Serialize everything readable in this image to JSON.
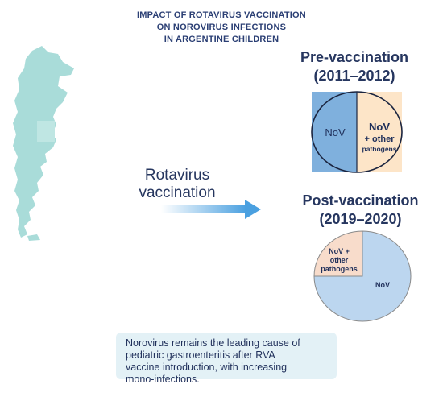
{
  "title_lines": [
    "IMPACT OF ROTAVIRUS VACCINATION",
    "ON NOROVIRUS INFECTIONS",
    "IN ARGENTINE CHILDREN"
  ],
  "pre_heading": [
    "Pre-vaccination",
    "(2011–2012)"
  ],
  "post_heading": [
    "Post-vaccination",
    "(2019–2020)"
  ],
  "vaccination_label": [
    "Rotavirus",
    "vaccination"
  ],
  "pre_pie": {
    "slices": [
      {
        "label": [
          "NoV"
        ],
        "fraction": 0.5,
        "color": "#7fb0dd"
      },
      {
        "label": [
          "NoV",
          "+ other",
          "pathogens"
        ],
        "fraction": 0.5,
        "color": "#fde5c8"
      }
    ]
  },
  "post_pie": {
    "slices": [
      {
        "label": [
          "NoV"
        ],
        "fraction": 0.75,
        "color": "#bcd6ef"
      },
      {
        "label": [
          "NoV +",
          "other",
          "pathogens"
        ],
        "fraction": 0.25,
        "color": "#f8dccb"
      }
    ]
  },
  "note_lines": [
    "Norovirus remains the leading cause of",
    "pediatric gastroenteritis after RVA",
    "vaccine introduction, with increasing",
    "mono-infections."
  ],
  "colors": {
    "map": "#a9dcd9",
    "arrow": "#4aa0e0",
    "dark_text": "#26365f"
  },
  "icons": {
    "map": "argentina-map",
    "arrow": "right-arrow"
  }
}
